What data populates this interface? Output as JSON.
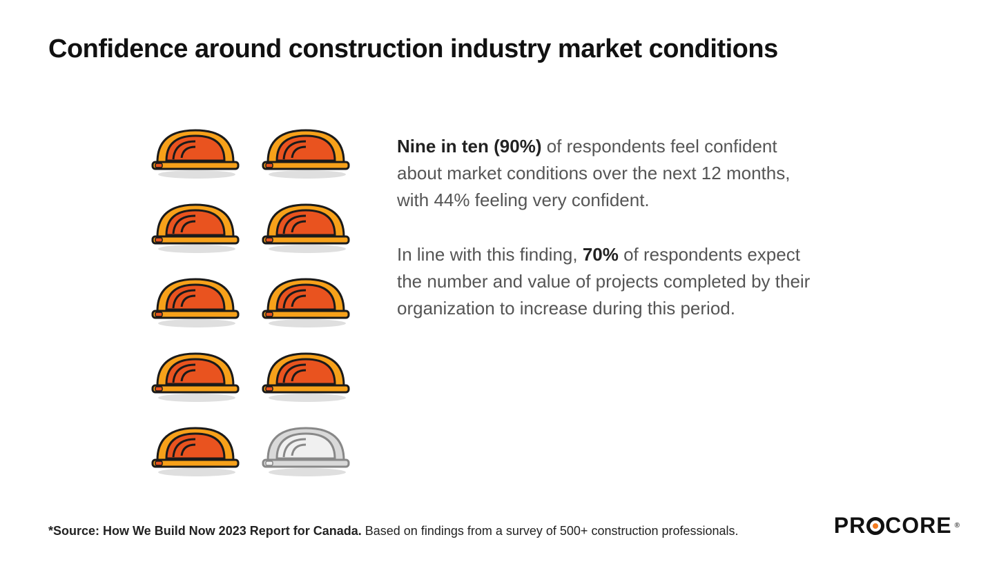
{
  "title": "Confidence around construction industry market conditions",
  "pictograph": {
    "total_icons": 10,
    "filled_icons": 9,
    "rows": 5,
    "cols": 2,
    "icon_name": "hardhat-icon",
    "filled_color_outer": "#f7a11a",
    "filled_color_inner": "#e9531f",
    "empty_color_outer": "#d9d9d9",
    "empty_color_inner": "#f0f0f0",
    "stroke_color": "#1a1a1a",
    "shadow_color": "#d2d2d2"
  },
  "paragraphs": [
    {
      "bold_lead": "Nine in ten (90%)",
      "rest": " of respondents feel confident about market conditions over the next 12 months, with 44% feeling very confident."
    },
    {
      "pre": "In line with this finding, ",
      "bold_mid": "70%",
      "post": " of respondents expect the number and value of projects completed by their organization to increase during this period."
    }
  ],
  "footer": {
    "source_bold": "*Source: How We Build Now 2023 Report for Canada.",
    "source_rest": " Based on findings from a survey of 500+ construction professionals.",
    "logo_text_pre": "PR",
    "logo_text_post": "CORE",
    "logo_reg": "®"
  },
  "colors": {
    "background": "#ffffff",
    "title_color": "#111111",
    "body_text_color": "#555555",
    "bold_text_color": "#222222",
    "logo_accent": "#f47b20"
  },
  "typography": {
    "title_fontsize": 38,
    "body_fontsize": 26,
    "footer_fontsize": 18,
    "logo_fontsize": 32
  }
}
